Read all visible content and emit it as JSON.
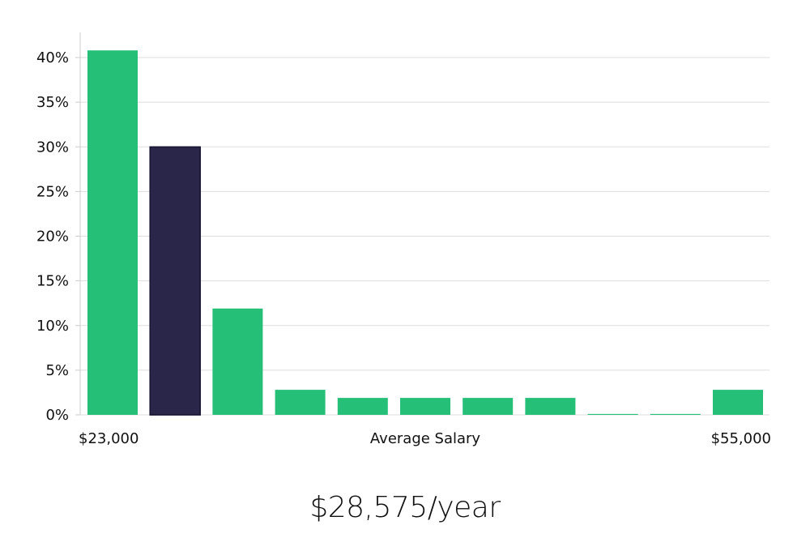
{
  "chart_data": {
    "type": "bar",
    "categories": [
      "b1",
      "b2",
      "b3",
      "b4",
      "b5",
      "b6",
      "b7",
      "b8",
      "b9",
      "b10",
      "b11"
    ],
    "values": [
      40.8,
      30.0,
      11.9,
      2.8,
      1.9,
      1.9,
      1.9,
      1.9,
      0.1,
      0.1,
      2.8
    ],
    "highlight_index": 1,
    "y_ticks": [
      "0%",
      "5%",
      "10%",
      "15%",
      "20%",
      "25%",
      "30%",
      "35%",
      "40%"
    ],
    "ylim": [
      0,
      42.7
    ],
    "xlabel": "Average Salary",
    "x_min_label": "$23,000",
    "x_max_label": "$55,000",
    "grid": true,
    "colors": {
      "bar": "#26bf77",
      "highlight": "#29264a",
      "grid": "#dddddd",
      "axis": "#cccccc"
    }
  },
  "summary": {
    "salary": "$28,575/year"
  }
}
